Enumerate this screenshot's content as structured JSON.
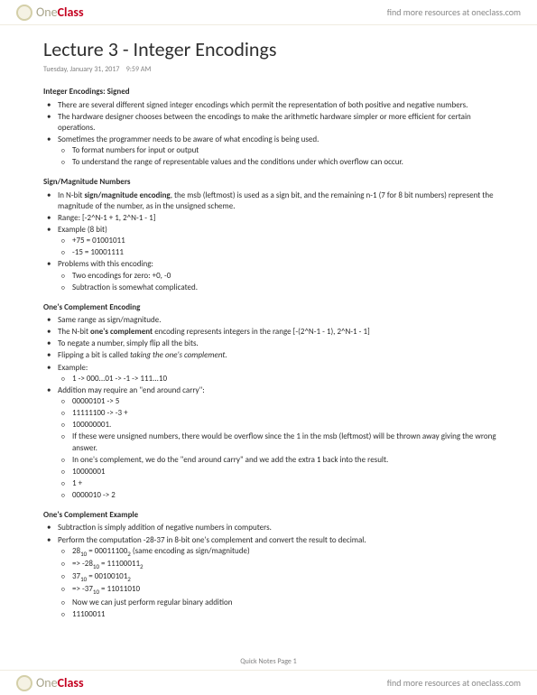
{
  "brand": {
    "prefix": "One",
    "suffix": "Class"
  },
  "findMore": "find more resources at oneclass.com",
  "title": "Lecture 3 - Integer Encodings",
  "meta": {
    "date": "Tuesday, January 31, 2017",
    "time": "9:59 AM"
  },
  "sec1": {
    "title": "Integer Encodings: Signed",
    "b1": "There are several different signed integer encodings which permit the representation of both positive and negative numbers.",
    "b2": "The hardware designer chooses between the encodings to make the arithmetic hardware simpler or more efficient for certain operations.",
    "b3": "Sometimes the programmer needs to be aware of what encoding is being used.",
    "b3a": "To format numbers for input or output",
    "b3b": "To understand the range of representable values and the conditions under which overflow can occur."
  },
  "sec2": {
    "title": "Sign/Magnitude Numbers",
    "b1a": "In N-bit ",
    "b1bold": "sign/magnitude encoding",
    "b1b": ", the msb (leftmost) is used as a sign bit, and the remaining n-1 (7 for 8 bit numbers) represent the magnitude of the number, as in the unsigned scheme.",
    "b2": "Range: [-2^N-1 + 1, 2^N-1 - 1]",
    "b3": "Example (8 bit)",
    "b3a": "+75 = 01001011",
    "b3b": "-15 = 10001111",
    "b4": "Problems with this encoding:",
    "b4a": "Two encodings for zero: +0, -0",
    "b4b": "Subtraction is somewhat complicated."
  },
  "sec3": {
    "title": "One's Complement Encoding",
    "b1": "Same range as sign/magnitude.",
    "b2a": "The N-bit ",
    "b2bold": "one's complement",
    "b2b": " encoding represents integers in the range [-(2^N-1 - 1), 2^N-1 - 1]",
    "b3": "To negate a number, simply flip all the bits.",
    "b4a": "Flipping a bit is called ",
    "b4i": "taking the one's complement.",
    "b5": "Example:",
    "b5a": "1 -> 000...01 -> -1 -> 111...10",
    "b6": "Addition may require an \"end around carry\":",
    "b6a": "00000101 -> 5",
    "b6b": "11111100 -> -3 +",
    "b6c": "100000001.",
    "b6d": "If these were unsigned numbers, there would be overflow since the 1 in the msb (leftmost) will be thrown away giving the wrong answer.",
    "b6e": "In one's complement, we do the \"end around carry\" and we add the extra 1 back into the result.",
    "b6f": "10000001",
    "b6g": "               1 +",
    "b6h": "0000010 -> 2"
  },
  "sec4": {
    "title": "One's Complement Example",
    "b1": "Subtraction is simply addition of negative numbers in computers.",
    "b2": "Perform the computation -28-37 in 8-bit one's complement and convert the result to decimal.",
    "b2a_pre": "28",
    "b2a_sub": "10",
    "b2a_mid": " = 00011100",
    "b2a_sub2": "2",
    "b2a_post": " (same encoding as sign/magnitude)",
    "b2b_pre": "=> -28",
    "b2b_sub": "10",
    "b2b_mid": " = 11100011",
    "b2b_sub2": "2",
    "b2c_pre": "37",
    "b2c_sub": "10",
    "b2c_mid": " = 00100101",
    "b2c_sub2": "2",
    "b2d_pre": "=> -37",
    "b2d_sub": "10",
    "b2d_mid": " = 11011010",
    "b2e": "Now we can just perform regular binary addition",
    "b2f": "11100011"
  },
  "pageFoot": "Quick Notes Page 1"
}
